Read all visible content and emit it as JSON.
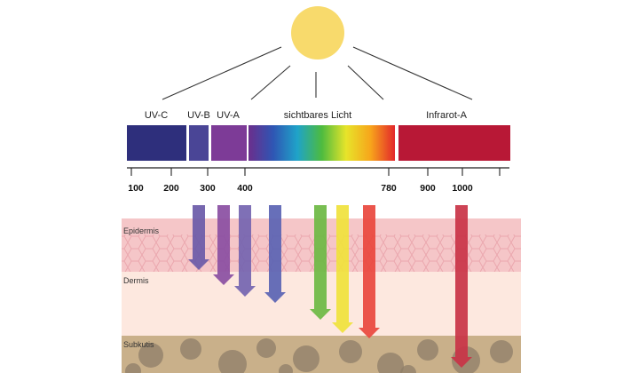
{
  "spectrum": {
    "bands": [
      {
        "label": "UV-C",
        "color": "#2e2f7c"
      },
      {
        "label": "UV-B",
        "color": "#4a4596"
      },
      {
        "label": "UV-A",
        "color": "#7d3b97"
      },
      {
        "label": "sichtbares Licht",
        "color": "gradient"
      },
      {
        "label": "Infrarot-A",
        "color": "#b81836"
      }
    ],
    "visible_gradient": [
      "#6b2e8c",
      "#2f55b3",
      "#1fa3c9",
      "#4dbb3f",
      "#e7e42a",
      "#f7a51b",
      "#e3262b"
    ]
  },
  "axis": {
    "ticks": [
      "100",
      "200",
      "300",
      "400",
      "780",
      "900",
      "1000"
    ]
  },
  "skin_layers": [
    {
      "label": "Epidermis",
      "color": "#f5c6c8"
    },
    {
      "label": "Dermis",
      "color": "#fde8df"
    },
    {
      "label": "Subkutis",
      "color": "#c9b08a"
    }
  ],
  "arrows": [
    {
      "color": "#6a5aa8",
      "depth": "epidermis"
    },
    {
      "color": "#8a4ea2",
      "depth": "dermis"
    },
    {
      "color": "#7464b0",
      "depth": "dermis"
    },
    {
      "color": "#5a63b3",
      "depth": "dermis"
    },
    {
      "color": "#6cb843",
      "depth": "dermis"
    },
    {
      "color": "#f0e23c",
      "depth": "dermis"
    },
    {
      "color": "#e9463d",
      "depth": "subcutis"
    },
    {
      "color": "#c93347",
      "depth": "subcutis"
    }
  ],
  "colors": {
    "sun": "#f8da6c",
    "ray": "#333333",
    "cell_line": "#eaa7ae",
    "fat_cell": "#8d7d68"
  }
}
